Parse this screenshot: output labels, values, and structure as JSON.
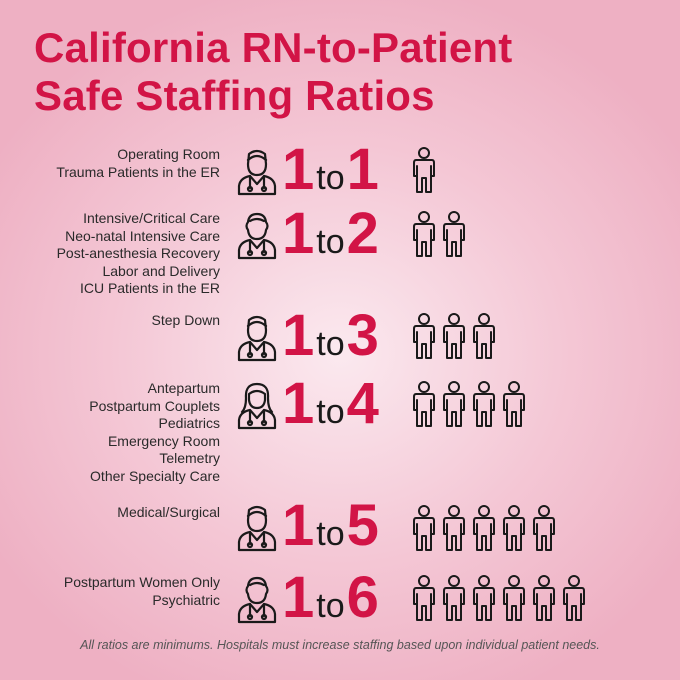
{
  "title": {
    "line1": "California RN-to-Patient",
    "line2": "Safe Staffing Ratios"
  },
  "rows": [
    {
      "labels": [
        "Operating Room",
        "Trauma Patients in the ER"
      ],
      "nurse": "1",
      "to": "to",
      "patients": "1",
      "patient_count": 1
    },
    {
      "labels": [
        "Intensive/Critical Care",
        "Neo-natal Intensive Care",
        "Post-anesthesia Recovery",
        "Labor and Delivery",
        "ICU Patients in the ER"
      ],
      "nurse": "1",
      "to": "to",
      "patients": "2",
      "patient_count": 2
    },
    {
      "labels": [
        "Step Down"
      ],
      "nurse": "1",
      "to": "to",
      "patients": "3",
      "patient_count": 3
    },
    {
      "labels": [
        "Antepartum",
        "Postpartum Couplets",
        "Pediatrics",
        "Emergency Room",
        "Telemetry",
        "Other Specialty Care"
      ],
      "nurse": "1",
      "to": "to",
      "patients": "4",
      "patient_count": 4
    },
    {
      "labels": [
        "Medical/Surgical"
      ],
      "nurse": "1",
      "to": "to",
      "patients": "5",
      "patient_count": 5
    },
    {
      "labels": [
        "Postpartum Women Only",
        "Psychiatric"
      ],
      "nurse": "1",
      "to": "to",
      "patients": "6",
      "patient_count": 6
    }
  ],
  "footnote": "All ratios are minimums. Hospitals must increase staffing based upon individual patient needs.",
  "colors": {
    "accent": "#d21446",
    "text": "#2a2a2a",
    "icon": "#1a1a1a"
  },
  "icons": {
    "nurse": "nurse-icon",
    "patient": "patient-icon"
  }
}
